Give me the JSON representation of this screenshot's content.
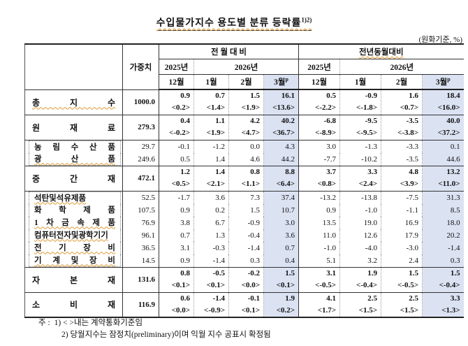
{
  "title": "수입물가지수 용도별 분류 등락률",
  "title_sup": "1)2)",
  "unit_note": "(원화기준, %)",
  "header": {
    "weight": "가중치",
    "groups": [
      {
        "label": "전 월 대 비",
        "squiggle": false
      },
      {
        "label": "전년동월대비",
        "squiggle": true
      }
    ],
    "year_prev": "2025년",
    "year_curr": "2026년",
    "months": [
      "12월",
      "1월",
      "2월",
      "3월"
    ],
    "month_sup": "p"
  },
  "rows": [
    {
      "type": "major",
      "label": "총 지 수",
      "squiggle": true,
      "weight": "1000.0",
      "mom": [
        "0.9",
        "0.7",
        "1.5",
        "16.1"
      ],
      "mom_b": [
        "<0.2>",
        "<1.4>",
        "<1.9>",
        "<13.6>"
      ],
      "yoy": [
        "0.5",
        "-0.9",
        "1.6",
        "18.4"
      ],
      "yoy_b": [
        "<-2.2>",
        "<-1.8>",
        "<0.7>",
        "<16.0>"
      ]
    },
    {
      "type": "major",
      "label": "원 재 료",
      "squiggle": false,
      "weight": "279.3",
      "mom": [
        "0.4",
        "1.1",
        "4.2",
        "40.2"
      ],
      "mom_b": [
        "<-0.2>",
        "<1.9>",
        "<4.7>",
        "<36.7>"
      ],
      "yoy": [
        "-6.8",
        "-9.5",
        "-3.5",
        "40.0"
      ],
      "yoy_b": [
        "<-8.9>",
        "<-9.5>",
        "<-3.8>",
        "<37.2>"
      ]
    },
    {
      "type": "subgroup",
      "rows": [
        {
          "label": "농 림 수 산 품",
          "squiggle": false,
          "weight": "29.7",
          "mom": [
            "-0.1",
            "-1.2",
            "0.0",
            "4.3"
          ],
          "yoy": [
            "3.0",
            "-1.3",
            "-3.3",
            "0.1"
          ]
        },
        {
          "label": "광 산 품",
          "squiggle": true,
          "weight": "249.6",
          "mom": [
            "0.5",
            "1.4",
            "4.6",
            "44.2"
          ],
          "yoy": [
            "-7.7",
            "-10.2",
            "-3.5",
            "44.6"
          ]
        }
      ]
    },
    {
      "type": "major",
      "label": "중 간 재",
      "squiggle": false,
      "weight": "472.1",
      "mom": [
        "1.2",
        "1.4",
        "0.8",
        "8.8"
      ],
      "mom_b": [
        "<0.5>",
        "<2.1>",
        "<1.1>",
        "<6.4>"
      ],
      "yoy": [
        "3.7",
        "3.3",
        "4.8",
        "13.2"
      ],
      "yoy_b": [
        "<0.8>",
        "<2.4>",
        "<3.9>",
        "<11.0>"
      ]
    },
    {
      "type": "subgroup",
      "rows": [
        {
          "label": "석탄및석유제품",
          "squiggle": true,
          "weight": "52.5",
          "mom": [
            "-1.7",
            "3.6",
            "7.3",
            "37.4"
          ],
          "yoy": [
            "-13.2",
            "-13.8",
            "-7.5",
            "31.3"
          ]
        },
        {
          "label": "화 학 제 품",
          "squiggle": false,
          "weight": "107.5",
          "mom": [
            "0.9",
            "0.2",
            "1.5",
            "10.7"
          ],
          "yoy": [
            "0.9",
            "-1.0",
            "-1.1",
            "8.5"
          ]
        },
        {
          "label": "1 차 금 속 제 품",
          "squiggle": true,
          "weight": "76.9",
          "mom": [
            "3.8",
            "6.7",
            "-0.9",
            "3.0"
          ],
          "yoy": [
            "13.5",
            "19.0",
            "16.9",
            "18.0"
          ]
        },
        {
          "label": "컴퓨터전자및광학기기",
          "squiggle": true,
          "weight": "96.1",
          "mom": [
            "0.7",
            "1.3",
            "-0.4",
            "3.6"
          ],
          "yoy": [
            "11.0",
            "12.6",
            "17.9",
            "20.2"
          ]
        },
        {
          "label": "전 기 장 비",
          "squiggle": true,
          "weight": "36.5",
          "mom": [
            "3.1",
            "-0.3",
            "-1.4",
            "0.7"
          ],
          "yoy": [
            "-1.0",
            "-4.0",
            "-3.0",
            "-1.4"
          ]
        },
        {
          "label": "기 계 및 장 비",
          "squiggle": true,
          "weight": "14.5",
          "mom": [
            "0.9",
            "-1.4",
            "0.3",
            "0.4"
          ],
          "yoy": [
            "5.1",
            "3.2",
            "2.4",
            "0.3"
          ]
        }
      ]
    },
    {
      "type": "major",
      "label": "자 본 재",
      "squiggle": false,
      "weight": "131.6",
      "mom": [
        "0.8",
        "-0.5",
        "-0.2",
        "1.5"
      ],
      "mom_b": [
        "<0.1>",
        "<0.1>",
        "<0.0>",
        "<0.1>"
      ],
      "yoy": [
        "3.1",
        "1.9",
        "1.5",
        "1.5"
      ],
      "yoy_b": [
        "<-0.5>",
        "<-0.4>",
        "<-0.5>",
        "<-0.4>"
      ]
    },
    {
      "type": "major",
      "label": "소 비 재",
      "squiggle": false,
      "weight": "116.9",
      "mom": [
        "0.6",
        "-1.4",
        "-0.1",
        "1.9"
      ],
      "mom_b": [
        "<0.0>",
        "<-0.9>",
        "<0.1>",
        "<0.2>"
      ],
      "yoy": [
        "4.1",
        "2.5",
        "2.5",
        "3.3"
      ],
      "yoy_b": [
        "<1.7>",
        "<1.5>",
        "<1.5>",
        "<1.3>"
      ]
    }
  ],
  "footnotes": {
    "prefix": "주 :",
    "items": [
      "1) < >내는 계약통화기준임",
      "2) 당월지수는 잠정치(preliminary)이며 익월 지수 공표시 확정됨"
    ]
  },
  "colors": {
    "highlight": "#dbe2f2",
    "squiggle": "#dd9933"
  }
}
